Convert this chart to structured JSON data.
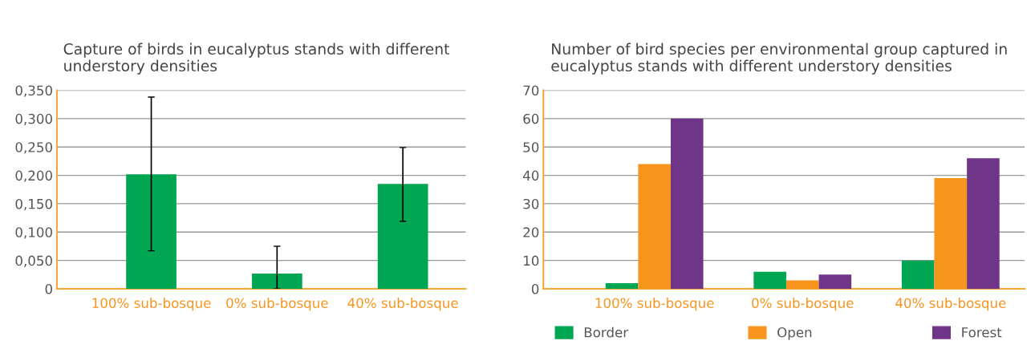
{
  "chart_data": [
    {
      "type": "bar",
      "title": "Capture of birds in eucalyptus stands with different understory densities",
      "categories": [
        "100% sub-bosque",
        "0% sub-bosque",
        "40% sub-bosque"
      ],
      "values": [
        0.202,
        0.027,
        0.185
      ],
      "color": "#00a651",
      "errors": [
        [
          0.067,
          0.338
        ],
        [
          0.0,
          0.075
        ],
        [
          0.119,
          0.249
        ]
      ],
      "ylim": [
        0,
        0.35
      ],
      "yticks": [
        {
          "value": 0,
          "label": "0"
        },
        {
          "value": 0.05,
          "label": "0,050"
        },
        {
          "value": 0.1,
          "label": "0,100"
        },
        {
          "value": 0.15,
          "label": "0,150"
        },
        {
          "value": 0.2,
          "label": "0,200"
        },
        {
          "value": 0.25,
          "label": "0,250"
        },
        {
          "value": 0.3,
          "label": "0,300"
        },
        {
          "value": 0.35,
          "label": "0,350"
        }
      ],
      "grid": "y"
    },
    {
      "type": "bar",
      "title": "Number of bird species per environmental group captured in eucalyptus stands with different understory densities",
      "categories": [
        "100% sub-bosque",
        "0% sub-bosque",
        "40% sub-bosque"
      ],
      "series": [
        {
          "name": "Border",
          "color": "#00a651",
          "values": [
            2,
            6,
            10
          ]
        },
        {
          "name": "Open",
          "color": "#f7941d",
          "values": [
            44,
            3,
            39
          ]
        },
        {
          "name": "Forest",
          "color": "#6f3589",
          "values": [
            60,
            5,
            46
          ]
        }
      ],
      "ylim": [
        0,
        70
      ],
      "yticks": [
        0,
        10,
        20,
        30,
        40,
        50,
        60,
        70
      ],
      "grid": "y",
      "legend": "bottom"
    }
  ]
}
